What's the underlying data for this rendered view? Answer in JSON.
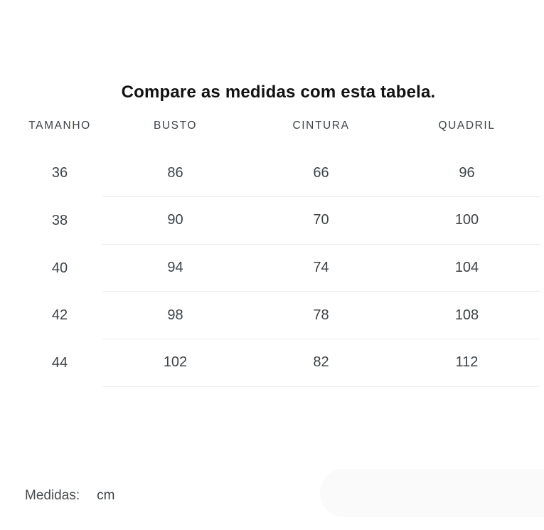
{
  "title": "Compare as medidas com esta tabela.",
  "table": {
    "headers": {
      "size": "TAMANHO",
      "bust": "BUSTO",
      "waist": "CINTURA",
      "hip": "QUADRIL"
    },
    "rows": [
      {
        "size": "36",
        "bust": "86",
        "waist": "66",
        "hip": "96"
      },
      {
        "size": "38",
        "bust": "90",
        "waist": "70",
        "hip": "100"
      },
      {
        "size": "40",
        "bust": "94",
        "waist": "74",
        "hip": "104"
      },
      {
        "size": "42",
        "bust": "98",
        "waist": "78",
        "hip": "108"
      },
      {
        "size": "44",
        "bust": "102",
        "waist": "82",
        "hip": "112"
      }
    ]
  },
  "footer": {
    "label": "Medidas:",
    "unit": "cm"
  },
  "colors": {
    "page_background": "#ffffff",
    "title_text": "#111111",
    "table_text": "#3e4347",
    "divider": "#ededed",
    "pill_background": "#fafafa"
  }
}
